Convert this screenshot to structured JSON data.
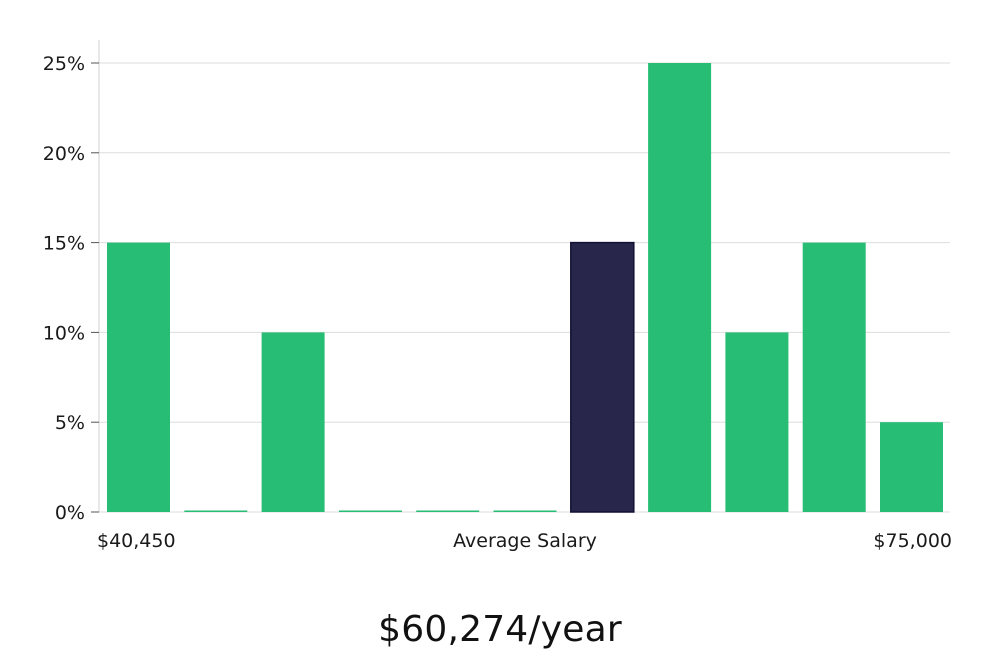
{
  "chart_data": {
    "type": "bar",
    "values": [
      15,
      0,
      10,
      0,
      0,
      0,
      15,
      25,
      10,
      15,
      5
    ],
    "highlight_index": 6,
    "y_ticks": [
      "0%",
      "5%",
      "10%",
      "15%",
      "20%",
      "25%"
    ],
    "y_tick_values": [
      0,
      5,
      10,
      15,
      20,
      25
    ],
    "ylim": [
      0,
      26.5
    ],
    "x_min_label": "$40,450",
    "x_center_label": "Average Salary",
    "x_max_label": "$75,000",
    "grid": true,
    "colors": {
      "bar": "#27bd74",
      "highlight": "#28264a",
      "grid": "#dddddd",
      "axis": "#d0d0d0"
    }
  },
  "summary": {
    "salary_text": "$60,274/year"
  }
}
